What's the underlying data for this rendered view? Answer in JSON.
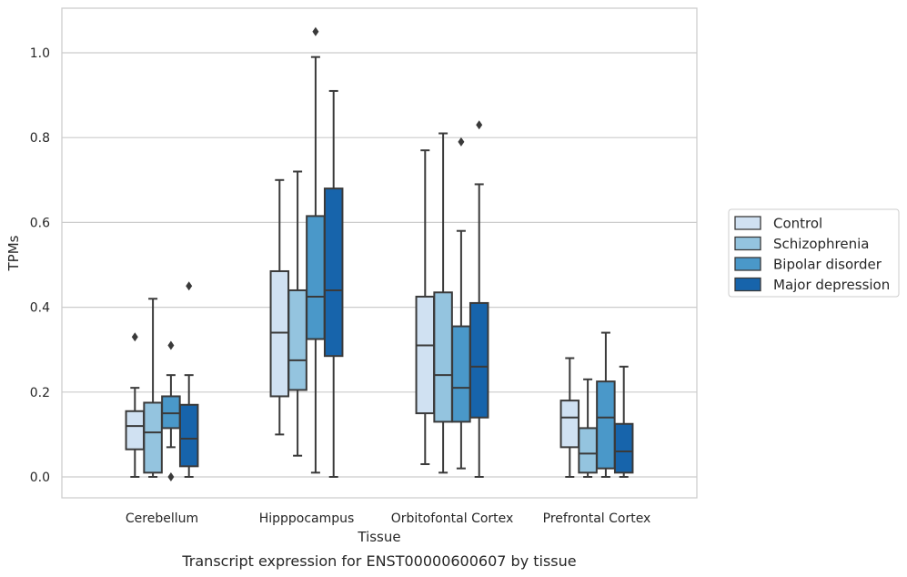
{
  "chart_data": {
    "type": "box",
    "title": "",
    "caption": "Transcript expression for ENST00000600607 by tissue",
    "xlabel": "Tissue",
    "ylabel": "TPMs",
    "ylim": [
      -0.05,
      1.1
    ],
    "yticks": [
      0.0,
      0.2,
      0.4,
      0.6,
      0.8,
      1.0
    ],
    "ytick_labels": [
      "0.0",
      "0.2",
      "0.4",
      "0.6",
      "0.8",
      "1.0"
    ],
    "grid": "horizontal",
    "legend_position": "right",
    "categories": [
      "Cerebellum",
      "Hipppocampus",
      "Orbitofontal Cortex",
      "Prefrontal Cortex"
    ],
    "series": [
      {
        "name": "Control",
        "color": "#d0e1f2",
        "boxes": [
          {
            "whisker_low": 0.0,
            "q1": 0.065,
            "median": 0.12,
            "q3": 0.155,
            "whisker_high": 0.21,
            "outliers": [
              0.33
            ]
          },
          {
            "whisker_low": 0.1,
            "q1": 0.19,
            "median": 0.34,
            "q3": 0.485,
            "whisker_high": 0.7,
            "outliers": []
          },
          {
            "whisker_low": 0.03,
            "q1": 0.15,
            "median": 0.31,
            "q3": 0.425,
            "whisker_high": 0.77,
            "outliers": []
          },
          {
            "whisker_low": 0.0,
            "q1": 0.07,
            "median": 0.14,
            "q3": 0.18,
            "whisker_high": 0.28,
            "outliers": []
          }
        ]
      },
      {
        "name": "Schizophrenia",
        "color": "#94c4df",
        "boxes": [
          {
            "whisker_low": 0.0,
            "q1": 0.01,
            "median": 0.105,
            "q3": 0.175,
            "whisker_high": 0.42,
            "outliers": []
          },
          {
            "whisker_low": 0.05,
            "q1": 0.205,
            "median": 0.275,
            "q3": 0.44,
            "whisker_high": 0.72,
            "outliers": []
          },
          {
            "whisker_low": 0.01,
            "q1": 0.13,
            "median": 0.24,
            "q3": 0.435,
            "whisker_high": 0.81,
            "outliers": []
          },
          {
            "whisker_low": 0.0,
            "q1": 0.01,
            "median": 0.055,
            "q3": 0.115,
            "whisker_high": 0.23,
            "outliers": []
          }
        ]
      },
      {
        "name": "Bipolar disorder",
        "color": "#4a98c9",
        "boxes": [
          {
            "whisker_low": 0.07,
            "q1": 0.115,
            "median": 0.15,
            "q3": 0.19,
            "whisker_high": 0.24,
            "outliers": [
              0.31,
              0.0
            ]
          },
          {
            "whisker_low": 0.01,
            "q1": 0.325,
            "median": 0.425,
            "q3": 0.615,
            "whisker_high": 0.99,
            "outliers": [
              1.05
            ]
          },
          {
            "whisker_low": 0.02,
            "q1": 0.13,
            "median": 0.21,
            "q3": 0.355,
            "whisker_high": 0.58,
            "outliers": [
              0.79
            ]
          },
          {
            "whisker_low": 0.0,
            "q1": 0.02,
            "median": 0.14,
            "q3": 0.225,
            "whisker_high": 0.34,
            "outliers": []
          }
        ]
      },
      {
        "name": "Major depression",
        "color": "#1764ab",
        "boxes": [
          {
            "whisker_low": 0.0,
            "q1": 0.025,
            "median": 0.09,
            "q3": 0.17,
            "whisker_high": 0.24,
            "outliers": [
              0.45
            ]
          },
          {
            "whisker_low": 0.0,
            "q1": 0.285,
            "median": 0.44,
            "q3": 0.68,
            "whisker_high": 0.91,
            "outliers": []
          },
          {
            "whisker_low": 0.0,
            "q1": 0.14,
            "median": 0.26,
            "q3": 0.41,
            "whisker_high": 0.69,
            "outliers": [
              0.83
            ]
          },
          {
            "whisker_low": 0.0,
            "q1": 0.01,
            "median": 0.06,
            "q3": 0.125,
            "whisker_high": 0.26,
            "outliers": []
          }
        ]
      }
    ]
  },
  "colors": {
    "grid": "#cccccc",
    "frame": "#cccccc",
    "line": "#3a3a3a",
    "legend_border": "#cccccc"
  }
}
